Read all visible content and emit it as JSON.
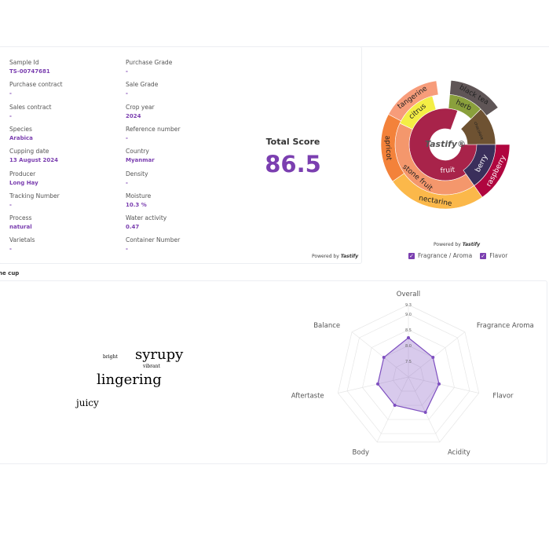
{
  "fields": [
    {
      "label": "Sample Id",
      "value": "TS-00747681"
    },
    {
      "label": "Purchase contract",
      "value": "-"
    },
    {
      "label": "Sales contract",
      "value": "-"
    },
    {
      "label": "Species",
      "value": "Arabica"
    },
    {
      "label": "Cupping date",
      "value": "13 August 2024"
    },
    {
      "label": "Producer",
      "value": "Long Hay"
    },
    {
      "label": "Tracking Number",
      "value": "-"
    },
    {
      "label": "Process",
      "value": "natural"
    },
    {
      "label": "Varietals",
      "value": "-"
    },
    {
      "label": "Purchase Grade",
      "value": "-"
    },
    {
      "label": "Sale Grade",
      "value": "-"
    },
    {
      "label": "Crop year",
      "value": "2024"
    },
    {
      "label": "Reference number",
      "value": "-"
    },
    {
      "label": "Country",
      "value": "Myanmar"
    },
    {
      "label": "Density",
      "value": "-"
    },
    {
      "label": "Moisture",
      "value": "10.3 %"
    },
    {
      "label": "Water activity",
      "value": "0.47"
    },
    {
      "label": "Container Number",
      "value": "-"
    }
  ],
  "score": {
    "label": "Total Score",
    "value": "86.5"
  },
  "powered": {
    "text": "Powered by",
    "brand": "Tastify"
  },
  "wheel": {
    "center": "Tastify®",
    "segments": [
      {
        "label": "fruit",
        "color": "#a8234a",
        "ring": 1,
        "span": [
          90,
          380
        ]
      },
      {
        "label": "chocolate",
        "color": "#6e5232",
        "ring": 2,
        "span": [
          45,
          90
        ]
      },
      {
        "label": "herb",
        "color": "#8aa03c",
        "ring": 2,
        "span": [
          5,
          45
        ]
      },
      {
        "label": "berry",
        "color": "#3a2f5b",
        "ring": 2,
        "span": [
          90,
          145
        ]
      },
      {
        "label": "stone fruit",
        "color": "#f4976c",
        "ring": 2,
        "span": [
          145,
          295
        ]
      },
      {
        "label": "citrus",
        "color": "#f4ee45",
        "ring": 2,
        "span": [
          295,
          345
        ]
      },
      {
        "label": "raspberry",
        "color": "#b0063f",
        "ring": 3,
        "span": [
          90,
          145
        ]
      },
      {
        "label": "nectarine",
        "color": "#fbb84a",
        "ring": 3,
        "span": [
          145,
          235
        ]
      },
      {
        "label": "apricot",
        "color": "#f3823a",
        "ring": 3,
        "span": [
          235,
          298
        ]
      },
      {
        "label": "tangerine",
        "color": "#f79c7a",
        "ring": 3,
        "span": [
          298,
          352
        ]
      },
      {
        "label": "black tea",
        "color": "#5f5556",
        "ring": 3,
        "span": [
          5,
          55
        ]
      }
    ]
  },
  "legend": [
    "Fragrance / Aroma",
    "Flavor"
  ],
  "section_title": "he cup",
  "words": [
    {
      "text": "syrupy",
      "color": "#3b83c4"
    },
    {
      "text": "bright",
      "color": "#4caf50"
    },
    {
      "text": "vibrant",
      "color": "#888888"
    },
    {
      "text": "lingering",
      "color": "#d32f2f"
    },
    {
      "text": "juicy",
      "color": "#4caf50"
    }
  ],
  "chart_data": {
    "type": "radar",
    "categories": [
      "Overall",
      "Fragrance Aroma",
      "Flavor",
      "Acidity",
      "Body",
      "Aftertaste",
      "Balance"
    ],
    "values": [
      8.25,
      8.0,
      8.0,
      8.25,
      8.0,
      8.0,
      8.0
    ],
    "rlim": [
      7.0,
      9.3
    ],
    "ticks": [
      "7.5",
      "8.0",
      "8.5",
      "9.0",
      "9.3"
    ],
    "color": "#7e4fc0"
  }
}
